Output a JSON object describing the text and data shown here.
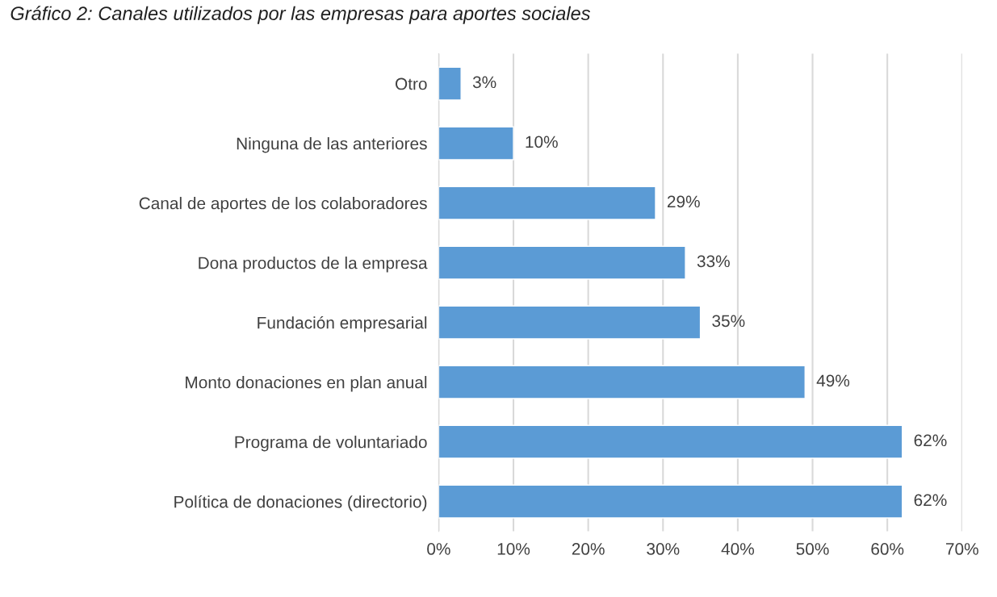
{
  "chart_data": {
    "type": "bar",
    "orientation": "horizontal",
    "title": "Gráfico 2: Canales utilizados por las empresas para aportes sociales",
    "categories": [
      "Otro",
      "Ninguna de las anteriores",
      "Canal de aportes de los colaboradores",
      "Dona productos de la empresa",
      "Fundación empresarial",
      "Monto donaciones en plan anual",
      "Programa de voluntariado",
      "Política de donaciones (directorio)"
    ],
    "values": [
      3,
      10,
      29,
      33,
      35,
      49,
      62,
      62
    ],
    "value_labels": [
      "3%",
      "10%",
      "29%",
      "33%",
      "35%",
      "49%",
      "62%",
      "62%"
    ],
    "color": "#5b9bd5",
    "xlim": [
      0,
      70
    ],
    "xticks": [
      {
        "value": 0,
        "label": "0%"
      },
      {
        "value": 10,
        "label": "10%"
      },
      {
        "value": 20,
        "label": "20%"
      },
      {
        "value": 30,
        "label": "30%"
      },
      {
        "value": 40,
        "label": "40%"
      },
      {
        "value": 50,
        "label": "50%"
      },
      {
        "value": 60,
        "label": "60%"
      },
      {
        "value": 70,
        "label": "70%"
      }
    ],
    "grid": "x",
    "legend": false
  }
}
